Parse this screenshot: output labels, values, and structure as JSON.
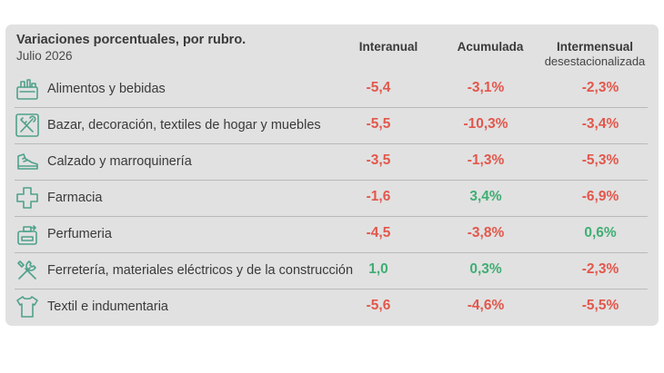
{
  "colors": {
    "negative": "#e2574c",
    "positive": "#3fae73",
    "icon": "#4fa18a",
    "card_bg": "#e1e1e1"
  },
  "chart_data": {
    "type": "table",
    "title": "Variaciones porcentuales, por rubro.",
    "subtitle": "Julio 2026",
    "columns": [
      {
        "label": "Interanual",
        "sublabel": ""
      },
      {
        "label": "Acumulada",
        "sublabel": ""
      },
      {
        "label": "Intermensual",
        "sublabel": "desestacionalizada"
      }
    ],
    "rows": [
      {
        "label": "Alimentos y bebidas",
        "icon": "grocery-icon",
        "values": [
          "-5,4",
          "-3,1%",
          "-2,3%"
        ],
        "signs": [
          "neg",
          "neg",
          "neg"
        ]
      },
      {
        "label": "Bazar, decoración, textiles de hogar y muebles",
        "icon": "utensils-icon",
        "values": [
          "-5,5",
          "-10,3%",
          "-3,4%"
        ],
        "signs": [
          "neg",
          "neg",
          "neg"
        ]
      },
      {
        "label": "Calzado y marroquinería",
        "icon": "shoe-icon",
        "values": [
          "-3,5",
          "-1,3%",
          "-5,3%"
        ],
        "signs": [
          "neg",
          "neg",
          "neg"
        ]
      },
      {
        "label": "Farmacia",
        "icon": "cross-icon",
        "values": [
          "-1,6",
          "3,4%",
          "-6,9%"
        ],
        "signs": [
          "neg",
          "pos",
          "neg"
        ]
      },
      {
        "label": "Perfumeria",
        "icon": "perfume-icon",
        "values": [
          "-4,5",
          "-3,8%",
          "0,6%"
        ],
        "signs": [
          "neg",
          "neg",
          "pos"
        ]
      },
      {
        "label": "Ferretería, materiales eléctricos y de la construcción",
        "icon": "tools-icon",
        "values": [
          "1,0",
          "0,3%",
          "-2,3%"
        ],
        "signs": [
          "pos",
          "pos",
          "neg"
        ]
      },
      {
        "label": "Textil e indumentaria",
        "icon": "shirt-icon",
        "values": [
          "-5,6",
          "-4,6%",
          "-5,5%"
        ],
        "signs": [
          "neg",
          "neg",
          "neg"
        ]
      }
    ]
  }
}
